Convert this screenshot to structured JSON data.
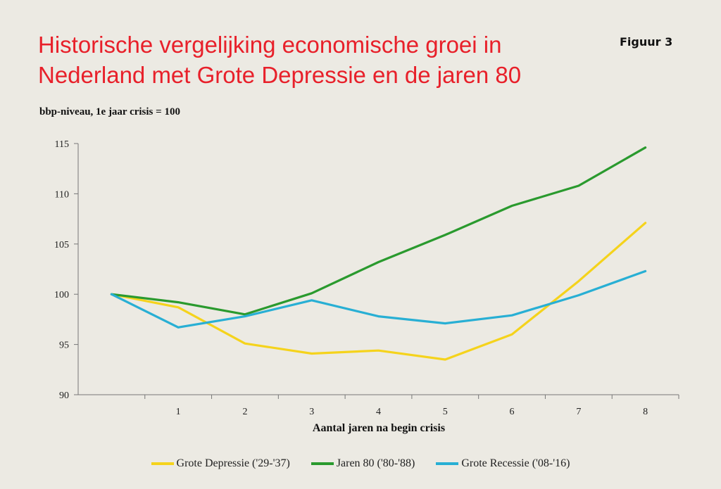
{
  "header": {
    "title": "Historische vergelijking economische groei in Nederland met Grote Depressie en de jaren 80",
    "figure_label": "Figuur 3",
    "subtitle": "bbp-niveau, 1e jaar crisis = 100"
  },
  "chart_data": {
    "type": "line",
    "title": "Historische vergelijking economische groei in Nederland met Grote Depressie en de jaren 80",
    "subtitle": "bbp-niveau, 1e jaar crisis = 100",
    "xlabel": "Aantal jaren na begin crisis",
    "ylabel": "",
    "x": [
      0,
      1,
      2,
      3,
      4,
      5,
      6,
      7,
      8
    ],
    "x_tick_labels": [
      "1",
      "2",
      "3",
      "4",
      "5",
      "6",
      "7",
      "8"
    ],
    "y_ticks": [
      90,
      95,
      100,
      105,
      110,
      115
    ],
    "ylim": [
      90,
      115
    ],
    "grid": false,
    "legend_position": "bottom",
    "series": [
      {
        "name": "Grote Depressie ('29-'37)",
        "color": "#f5d31c",
        "values": [
          100,
          98.7,
          95.1,
          94.1,
          94.4,
          93.5,
          96.0,
          101.3,
          107.1
        ]
      },
      {
        "name": "Jaren 80 ('80-'88)",
        "color": "#2a9a2e",
        "values": [
          100,
          99.2,
          98.0,
          100.1,
          103.2,
          105.9,
          108.8,
          110.8,
          114.6
        ]
      },
      {
        "name": "Grote Recessie ('08-'16)",
        "color": "#28afd4",
        "values": [
          100,
          96.7,
          97.8,
          99.4,
          97.8,
          97.1,
          97.9,
          99.9,
          102.3
        ]
      }
    ]
  }
}
